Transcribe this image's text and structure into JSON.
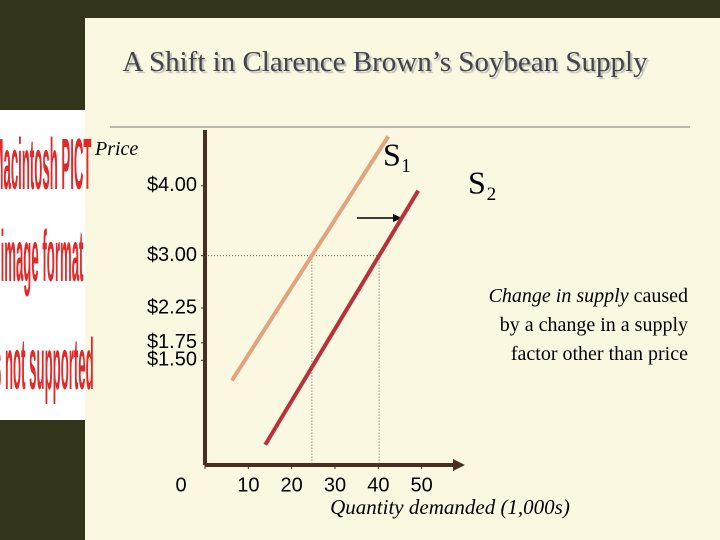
{
  "pict_placeholder": [
    "Macintosh PICT",
    "image format",
    "is not supported"
  ],
  "chart_data": {
    "type": "line",
    "title": "A Shift in Clarence Brown’s Soybean Supply",
    "y_label": "Price",
    "x_label": "Quantity demanded  (1,000s)",
    "annotation": [
      [
        "Change in supply",
        " caused"
      ],
      [
        "by a change in a supply"
      ],
      [
        "factor other than price"
      ]
    ],
    "series": [
      {
        "name": "S₁",
        "color": "#e2a47e",
        "x": [
          6.2,
          42.3
        ],
        "values": [
          1.21,
          4.71
        ]
      },
      {
        "name": "S₂",
        "color": "#b8323c",
        "x": [
          13.9,
          49.2
        ],
        "values": [
          0.29,
          3.93
        ]
      }
    ],
    "xlim": [
      0,
      60
    ],
    "ylim": [
      0,
      4.8
    ],
    "xticks": [
      0,
      10,
      20,
      30,
      40,
      50
    ],
    "yticks": [
      {
        "value": 1.5,
        "label": "$1.50"
      },
      {
        "value": 1.75,
        "label": "$1.75"
      },
      {
        "value": 2.25,
        "label": "$2.25"
      },
      {
        "value": 3,
        "label": "$3.00"
      },
      {
        "value": 4,
        "label": "$4.00"
      }
    ],
    "guide_y": 3
  }
}
